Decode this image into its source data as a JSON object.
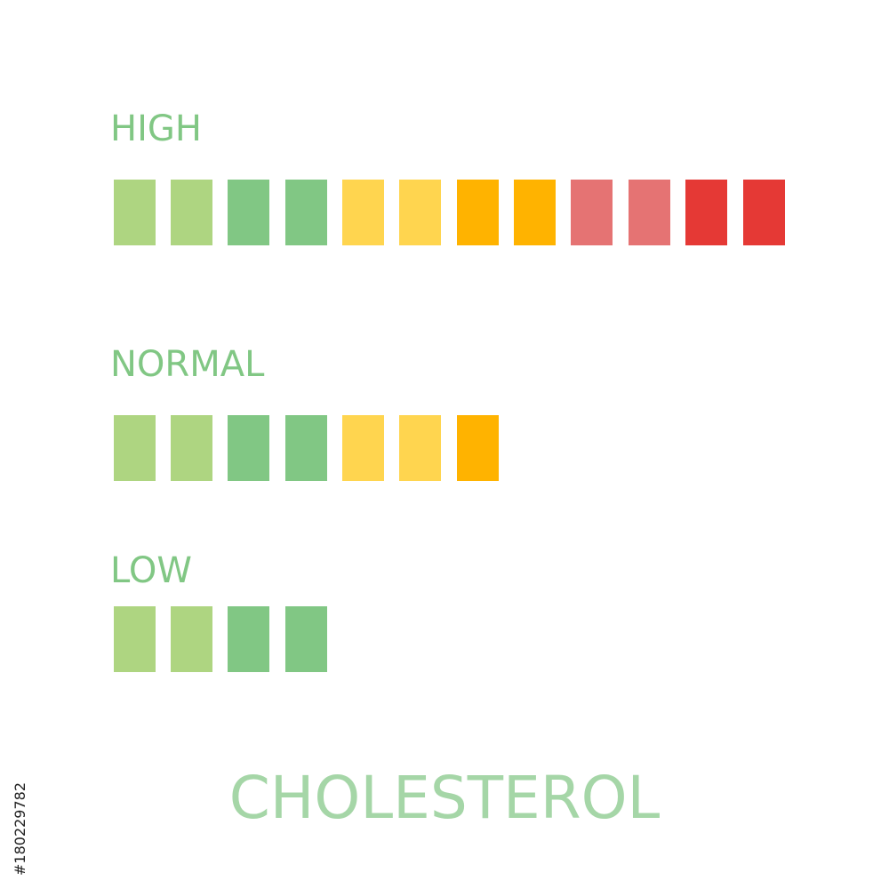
{
  "levels": [
    {
      "label": "HIGH"
    },
    {
      "label": "NORMAL"
    },
    {
      "label": "LOW"
    }
  ],
  "title": "CHOLESTEROL",
  "stock_id": "#180229782"
}
